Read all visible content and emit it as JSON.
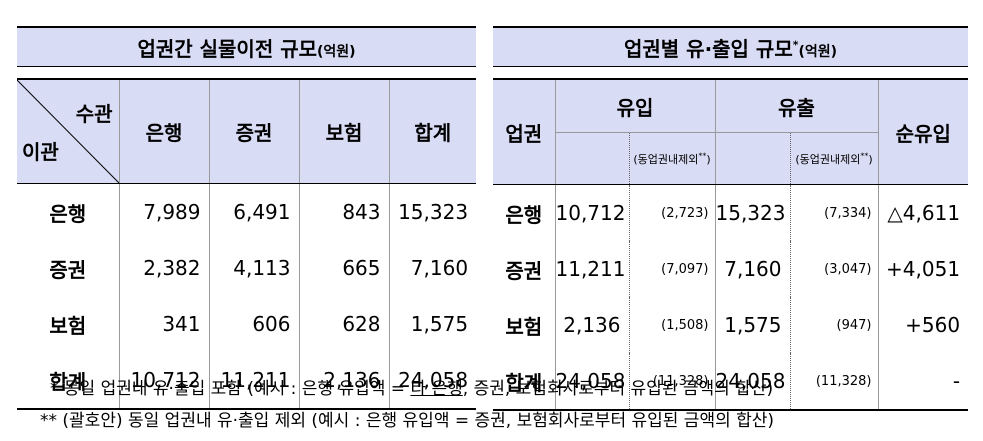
{
  "left": {
    "title": "업권간 실물이전 규모",
    "title_unit": "(억원)",
    "corner_top": "수관",
    "corner_bottom": "이관",
    "columns": [
      "은행",
      "증권",
      "보험",
      "합계"
    ],
    "rows": [
      {
        "label": "은행",
        "values": [
          "7,989",
          "6,491",
          "843",
          "15,323"
        ]
      },
      {
        "label": "증권",
        "values": [
          "2,382",
          "4,113",
          "665",
          "7,160"
        ]
      },
      {
        "label": "보험",
        "values": [
          "341",
          "606",
          "628",
          "1,575"
        ]
      },
      {
        "label": "합계",
        "values": [
          "10,712",
          "11,211",
          "2,136",
          "24,058"
        ]
      }
    ]
  },
  "right": {
    "title": "업권별 유·출입 규모",
    "title_star": "*",
    "title_unit": "(억원)",
    "col_sector": "업권",
    "col_inflow": "유입",
    "col_outflow": "유출",
    "col_net": "순유입",
    "excl_note": "(동업권내제외",
    "excl_mark": "**",
    "excl_close": ")",
    "rows": [
      {
        "label": "은행",
        "in": "10,712",
        "in_excl": "(2,723)",
        "out": "15,323",
        "out_excl": "(7,334)",
        "net": "△4,611"
      },
      {
        "label": "증권",
        "in": "11,211",
        "in_excl": "(7,097)",
        "out": "7,160",
        "out_excl": "(3,047)",
        "net": "+4,051"
      },
      {
        "label": "보험",
        "in": "2,136",
        "in_excl": "(1,508)",
        "out": "1,575",
        "out_excl": "(947)",
        "net": "+560"
      },
      {
        "label": "합계",
        "in": "24,058",
        "in_excl": "(11,328)",
        "out": "24,058",
        "out_excl": "(11,328)",
        "net": "-"
      }
    ]
  },
  "notes": {
    "note1_prefix": "* 동일 업권내 유·출입 포함 (예시 : 은행 유입액 = ",
    "note1_underlined": "타 은행",
    "note1_suffix": ", 증권, 보험회사로부터 유입된 금액의 합산)",
    "note2_mark": "**",
    "note2_text": " (괄호안) 동일 업권내 유·출입 제외 (예시 : 은행 유입액 = 증권, 보험회사로부터 유입된 금액의 합산)"
  }
}
